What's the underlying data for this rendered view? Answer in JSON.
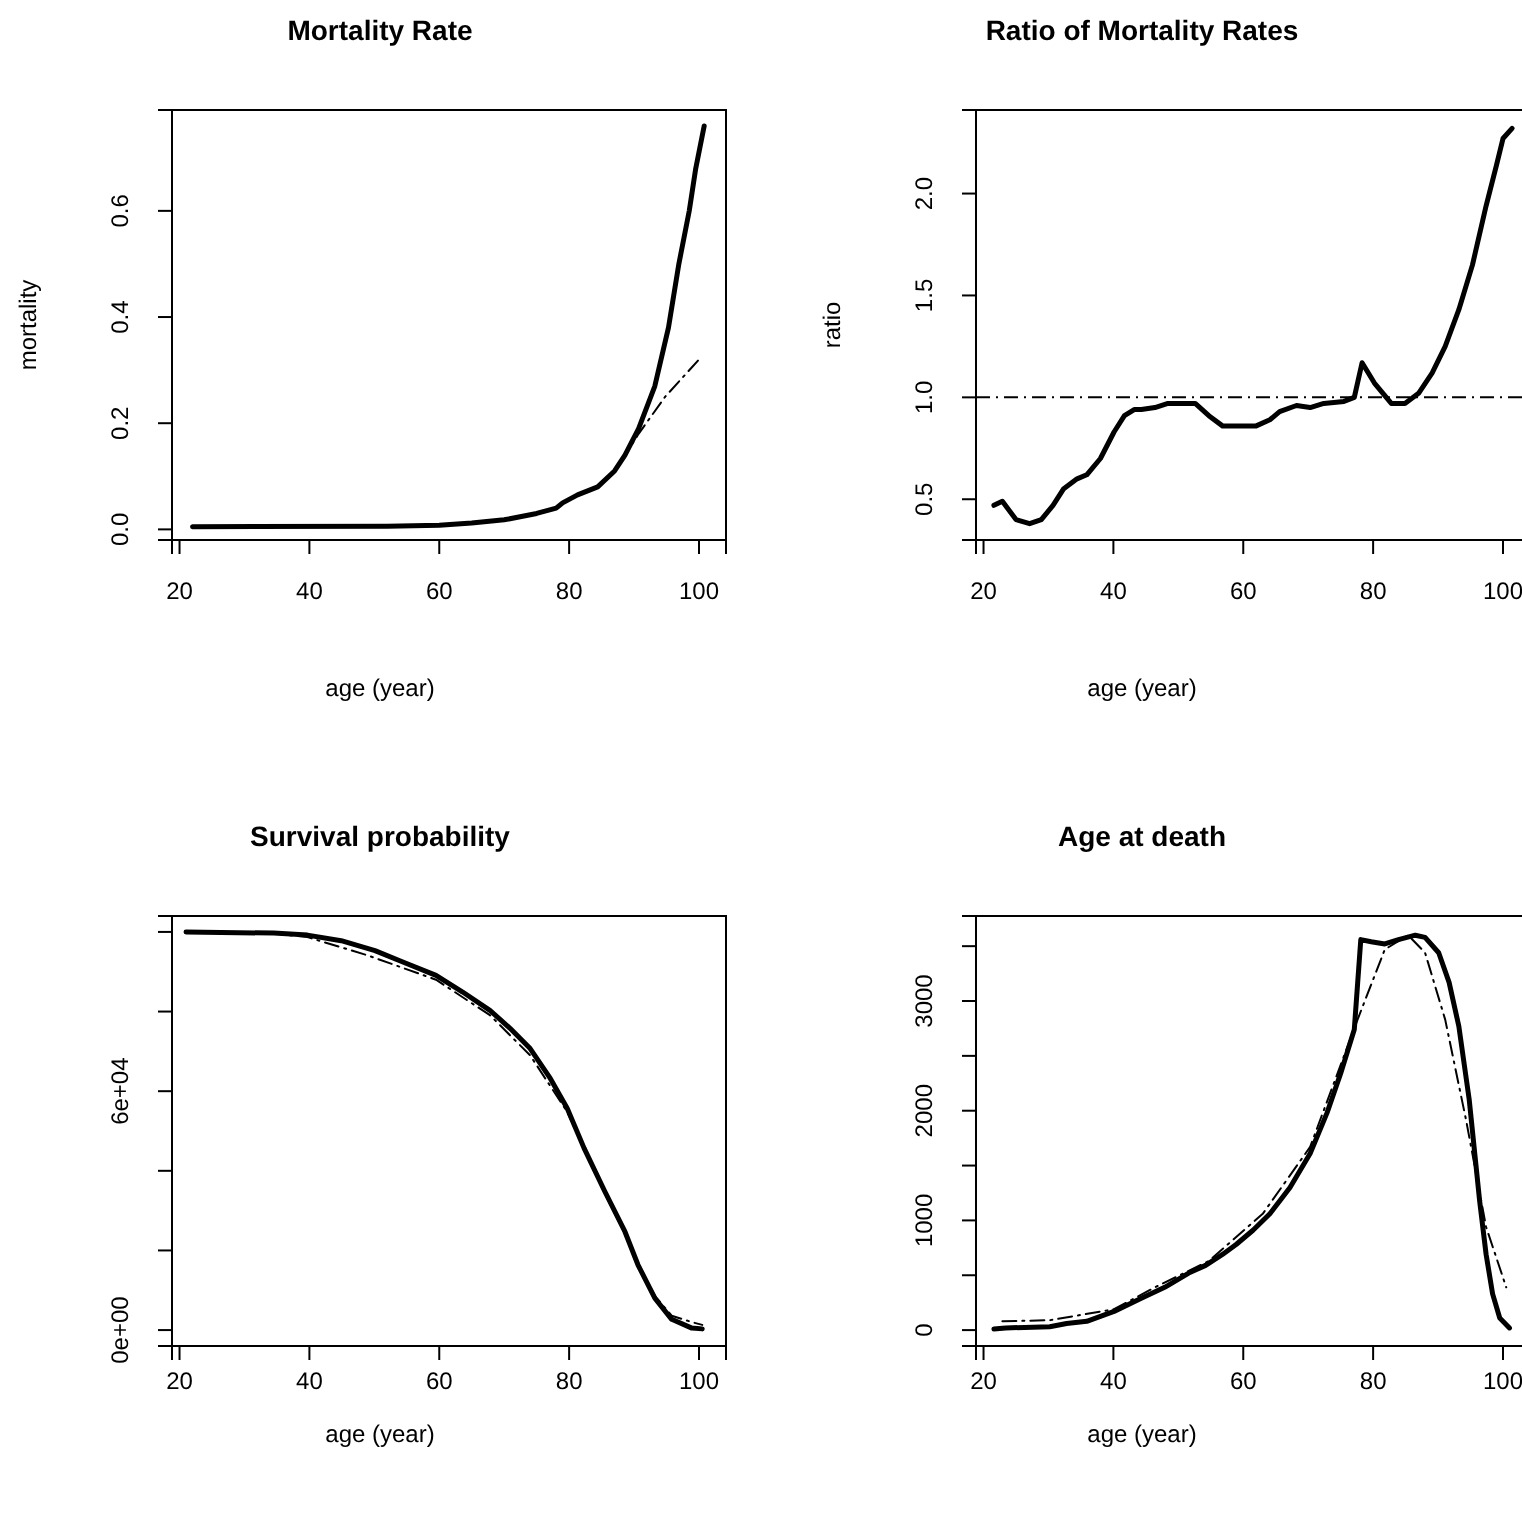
{
  "chart_data": [
    {
      "type": "line",
      "title": "Mortality Rate",
      "xlabel": "age (year)",
      "ylabel": "mortality",
      "xlim": [
        18.84,
        104.16
      ],
      "ylim": [
        -0.02,
        0.79
      ],
      "xticks": [
        20,
        40,
        60,
        80,
        100
      ],
      "yticks": [
        {
          "value": 0,
          "label": "0.0"
        },
        {
          "value": 0.2,
          "label": "0.2"
        },
        {
          "value": 0.4,
          "label": "0.4"
        },
        {
          "value": 0.6,
          "label": "0.6"
        }
      ],
      "series": [
        {
          "color": "#000000",
          "line_style": "solid",
          "x": [
            22,
            52,
            60,
            65,
            70,
            75,
            78,
            79,
            81.3,
            84.4,
            87,
            88.6,
            90.7,
            93.2,
            95.3,
            96.9,
            98.5,
            99.5,
            100.8
          ],
          "values": [
            0.005,
            0.006,
            0.008,
            0.012,
            0.018,
            0.03,
            0.04,
            0.05,
            0.065,
            0.08,
            0.11,
            0.14,
            0.19,
            0.27,
            0.38,
            0.5,
            0.6,
            0.68,
            0.76
          ]
        },
        {
          "color": "#000000",
          "line_style": "dashed",
          "x": [
            22,
            52,
            60,
            65,
            70,
            75,
            78,
            79,
            81.3,
            84.4,
            87,
            88.6,
            90.7,
            94.8,
            100,
            100.5
          ],
          "values": [
            0.005,
            0.006,
            0.008,
            0.012,
            0.018,
            0.03,
            0.04,
            0.05,
            0.065,
            0.08,
            0.11,
            0.14,
            0.18,
            0.25,
            0.32,
            0.32
          ]
        }
      ]
    },
    {
      "type": "line",
      "title": "Ratio of Mortality Rates",
      "xlabel": "age (year)",
      "ylabel": "ratio",
      "xlim": [
        18.84,
        104.16
      ],
      "ylim": [
        0.3,
        2.41
      ],
      "xticks": [
        20,
        40,
        60,
        80,
        100
      ],
      "yticks": [
        {
          "value": 0.5,
          "label": "0.5"
        },
        {
          "value": 1,
          "label": "1.0"
        },
        {
          "value": 1.5,
          "label": "1.5"
        },
        {
          "value": 2,
          "label": "2.0"
        }
      ],
      "ref_lines": [
        {
          "axis": "y",
          "value": 1,
          "color": "#000000",
          "line_style": "dashed"
        }
      ],
      "series": [
        {
          "color": "#000000",
          "line_style": "solid",
          "x": [
            21.6,
            22.9,
            25,
            27.1,
            28.9,
            30.7,
            32.3,
            34.4,
            35.9,
            38,
            40.1,
            41.7,
            43.2,
            44.3,
            46.4,
            48.4,
            51,
            52.6,
            54.7,
            56.8,
            62,
            64.1,
            65.6,
            68.2,
            70.3,
            72.4,
            75.5,
            77.1,
            78.3,
            80.2,
            82.8,
            84.9,
            87,
            89.1,
            91.1,
            93.2,
            95.3,
            97.4,
            99,
            100,
            101.4
          ],
          "values": [
            0.47,
            0.49,
            0.4,
            0.38,
            0.4,
            0.47,
            0.55,
            0.6,
            0.62,
            0.7,
            0.83,
            0.91,
            0.94,
            0.94,
            0.95,
            0.97,
            0.97,
            0.97,
            0.91,
            0.86,
            0.86,
            0.89,
            0.93,
            0.96,
            0.95,
            0.97,
            0.98,
            1.0,
            1.17,
            1.07,
            0.97,
            0.97,
            1.02,
            1.12,
            1.25,
            1.43,
            1.65,
            1.94,
            2.14,
            2.27,
            2.32
          ]
        }
      ]
    },
    {
      "type": "line",
      "title": "Survival probability",
      "xlabel": "age (year)",
      "xlim": [
        18.84,
        104.16
      ],
      "ylim": [
        -4000,
        104000
      ],
      "xticks": [
        20,
        40,
        60,
        80,
        100
      ],
      "yticks": [
        {
          "value": 0,
          "label": "0e+00"
        },
        {
          "value": 20000,
          "label": null
        },
        {
          "value": 40000,
          "label": null
        },
        {
          "value": 60000,
          "label": "6e+04"
        },
        {
          "value": 80000,
          "label": null
        },
        {
          "value": 100000,
          "label": null
        }
      ],
      "series": [
        {
          "color": "#000000",
          "line_style": "solid",
          "x": [
            21,
            34.5,
            39.7,
            44.9,
            50.1,
            54.3,
            59.5,
            63.6,
            67.8,
            70.9,
            74,
            77.1,
            79.7,
            82.3,
            85.5,
            88.6,
            90.6,
            93.2,
            95.8,
            98.9,
            100.5
          ],
          "values": [
            100000,
            99700,
            99200,
            97800,
            95300,
            92500,
            89100,
            84900,
            80300,
            75800,
            70700,
            63200,
            55700,
            45700,
            34800,
            24700,
            16400,
            8000,
            2700,
            500,
            300
          ]
        },
        {
          "color": "#000000",
          "line_style": "dashed",
          "x": [
            21,
            34.5,
            39.7,
            49,
            59.5,
            67.8,
            74,
            79.7,
            82.3,
            85.5,
            88.6,
            90.6,
            93.2,
            95.8,
            98.9,
            100.5
          ],
          "values": [
            100000,
            99600,
            98700,
            94100,
            88000,
            79100,
            69000,
            54800,
            45700,
            34800,
            24700,
            16600,
            8600,
            3600,
            2000,
            1300
          ]
        }
      ]
    },
    {
      "type": "line",
      "title": "Age at death",
      "xlabel": "age (year)",
      "xlim": [
        18.84,
        104.16
      ],
      "ylim": [
        -145,
        3775
      ],
      "xticks": [
        20,
        40,
        60,
        80,
        100
      ],
      "yticks": [
        {
          "value": 0,
          "label": "0"
        },
        {
          "value": 500,
          "label": null
        },
        {
          "value": 1000,
          "label": "1000"
        },
        {
          "value": 1500,
          "label": null
        },
        {
          "value": 2000,
          "label": "2000"
        },
        {
          "value": 2500,
          "label": null
        },
        {
          "value": 3000,
          "label": "3000"
        },
        {
          "value": 3500,
          "label": null
        }
      ],
      "series": [
        {
          "color": "#000000",
          "line_style": "solid",
          "x": [
            21.6,
            23.4,
            30.2,
            32.8,
            35.9,
            40.1,
            44.3,
            47.9,
            51.6,
            54.2,
            56.8,
            58.9,
            61.5,
            64.1,
            67.2,
            70.3,
            72.9,
            75,
            77.1,
            78.1,
            79.7,
            81.8,
            83.9,
            86.5,
            88,
            90.1,
            91.7,
            93.2,
            94.8,
            96.4,
            97.4,
            98.4,
            99.5,
            101
          ],
          "values": [
            10,
            20,
            30,
            60,
            80,
            170,
            290,
            390,
            520,
            590,
            690,
            780,
            910,
            1060,
            1300,
            1610,
            1980,
            2340,
            2740,
            3560,
            3540,
            3520,
            3560,
            3600,
            3580,
            3440,
            3170,
            2770,
            2100,
            1180,
            690,
            330,
            110,
            20
          ]
        },
        {
          "color": "#000000",
          "line_style": "dashed",
          "x": [
            22.9,
            30.2,
            40.1,
            46.4,
            54.7,
            63,
            70.3,
            77.6,
            81.8,
            85.4,
            88,
            91.1,
            94.3,
            97.4,
            100.5
          ],
          "values": [
            80,
            90,
            190,
            390,
            630,
            1060,
            1670,
            2830,
            3470,
            3600,
            3440,
            2830,
            1920,
            940,
            390
          ]
        }
      ]
    }
  ]
}
